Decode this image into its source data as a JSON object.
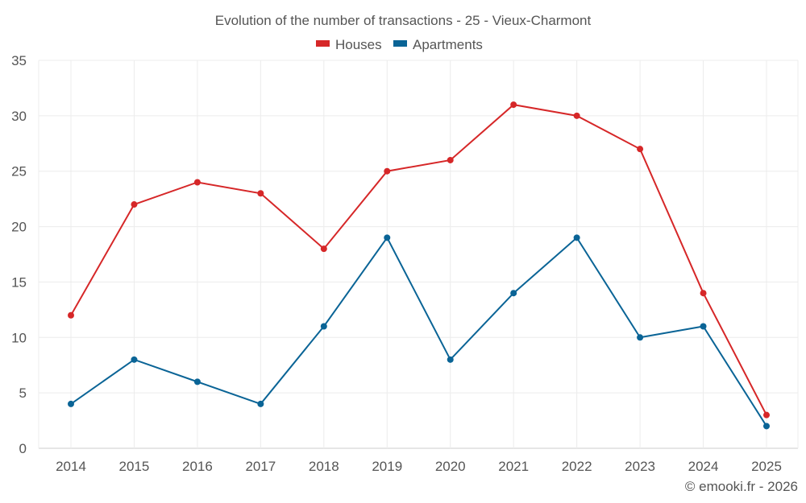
{
  "chart_data": {
    "type": "line",
    "title": "Evolution of the number of transactions - 25 - Vieux-Charmont",
    "categories": [
      "2014",
      "2015",
      "2016",
      "2017",
      "2018",
      "2019",
      "2020",
      "2021",
      "2022",
      "2023",
      "2024",
      "2025"
    ],
    "series": [
      {
        "name": "Houses",
        "color": "#d62728",
        "values": [
          12,
          22,
          24,
          23,
          18,
          25,
          26,
          31,
          30,
          27,
          14,
          3
        ]
      },
      {
        "name": "Apartments",
        "color": "#0a6496",
        "values": [
          4,
          8,
          6,
          4,
          11,
          19,
          8,
          14,
          19,
          10,
          11,
          2
        ]
      }
    ],
    "ylim": [
      0,
      35
    ],
    "yticks": [
      0,
      5,
      10,
      15,
      20,
      25,
      30,
      35
    ],
    "xlabel": "",
    "ylabel": "",
    "legend_position": "top-center",
    "grid": true
  },
  "credit": "© emooki.fr - 2026"
}
